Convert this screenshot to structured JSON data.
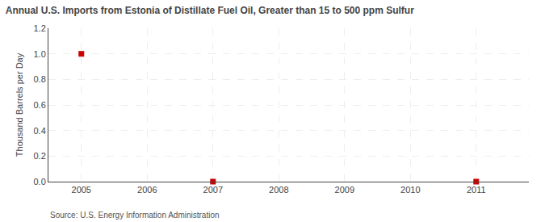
{
  "chart_data": {
    "type": "scatter",
    "title": "Annual U.S. Imports from Estonia of Distillate Fuel Oil, Greater than 15 to 500 ppm Sulfur",
    "ylabel": "Thousand Barrels per Day",
    "annotations": [
      "Source: U.S. Energy Information Administration"
    ],
    "x": [
      2005,
      2007,
      2011
    ],
    "values": [
      1.0,
      0.0,
      0.0
    ],
    "color": "#cc0000",
    "marker": "square",
    "xlim": [
      2004.5,
      2011.8
    ],
    "ylim": [
      0.0,
      1.2
    ],
    "xticks": [
      2005,
      2006,
      2007,
      2008,
      2009,
      2010,
      2011
    ],
    "yticks": [
      {
        "value": 0.0,
        "label": "0.0"
      },
      0.2,
      0.4,
      0.6,
      0.8,
      {
        "value": 1.0,
        "label": "1.0"
      },
      1.2
    ],
    "grid": true
  }
}
